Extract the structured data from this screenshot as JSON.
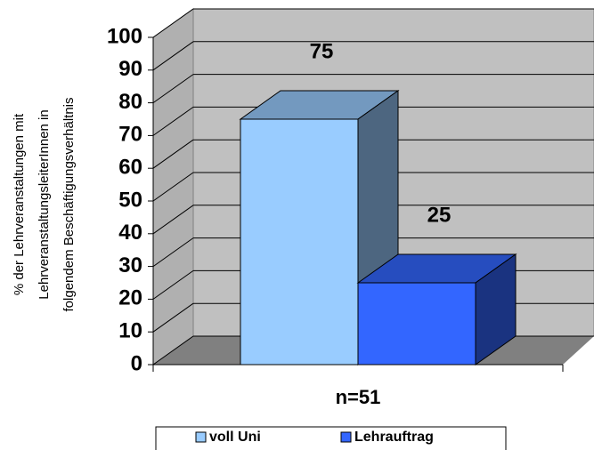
{
  "chart_data": {
    "type": "bar3d",
    "y_label": [
      "% der Lehrveranstaltungen mit",
      "LehrveranstaltungsleiterInnen in",
      "folgendem Beschäftigungsverhältnis"
    ],
    "categories": [
      "n=51"
    ],
    "series": [
      {
        "name": "voll Uni",
        "color": "#99ccff",
        "values": [
          75
        ]
      },
      {
        "name": "Lehrauftrag",
        "color": "#3366ff",
        "values": [
          25
        ]
      }
    ],
    "ylim": [
      0,
      100
    ],
    "yticks": [
      0,
      10,
      20,
      30,
      40,
      50,
      60,
      70,
      80,
      90,
      100
    ],
    "grid": true,
    "legend": "bottom"
  }
}
